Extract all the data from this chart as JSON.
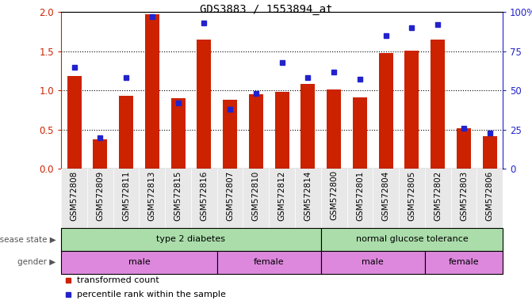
{
  "title": "GDS3883 / 1553894_at",
  "samples": [
    "GSM572808",
    "GSM572809",
    "GSM572811",
    "GSM572813",
    "GSM572815",
    "GSM572816",
    "GSM572807",
    "GSM572810",
    "GSM572812",
    "GSM572814",
    "GSM572800",
    "GSM572801",
    "GSM572804",
    "GSM572805",
    "GSM572802",
    "GSM572803",
    "GSM572806"
  ],
  "bar_values": [
    1.18,
    0.38,
    0.93,
    1.97,
    0.9,
    1.65,
    0.88,
    0.95,
    0.98,
    1.08,
    1.01,
    0.91,
    1.48,
    1.51,
    1.65,
    0.52,
    0.42
  ],
  "dot_values_pct": [
    65,
    20,
    58,
    97,
    42,
    93,
    38,
    48,
    68,
    58,
    62,
    57,
    85,
    90,
    92,
    26,
    23
  ],
  "bar_color": "#cc2200",
  "dot_color": "#2222cc",
  "ylim_left": [
    0,
    2.0
  ],
  "ylim_right": [
    0,
    100
  ],
  "yticks_left": [
    0,
    0.5,
    1.0,
    1.5,
    2.0
  ],
  "yticks_right": [
    0,
    25,
    50,
    75,
    100
  ],
  "disease_state_groups": [
    {
      "label": "type 2 diabetes",
      "start": 0,
      "end": 10,
      "color": "#aaddaa"
    },
    {
      "label": "normal glucose tolerance",
      "start": 10,
      "end": 17,
      "color": "#aaddaa"
    }
  ],
  "gender_groups": [
    {
      "label": "male",
      "start": 0,
      "end": 6,
      "color": "#dd88dd"
    },
    {
      "label": "female",
      "start": 6,
      "end": 10,
      "color": "#dd88dd"
    },
    {
      "label": "male",
      "start": 10,
      "end": 14,
      "color": "#dd88dd"
    },
    {
      "label": "female",
      "start": 14,
      "end": 17,
      "color": "#dd88dd"
    }
  ],
  "legend_items": [
    {
      "label": "transformed count",
      "color": "#cc2200"
    },
    {
      "label": "percentile rank within the sample",
      "color": "#2222cc"
    }
  ],
  "tick_color_left": "#cc2200",
  "tick_color_right": "#2222cc",
  "label_fontsize": 7.5,
  "bar_width": 0.55
}
